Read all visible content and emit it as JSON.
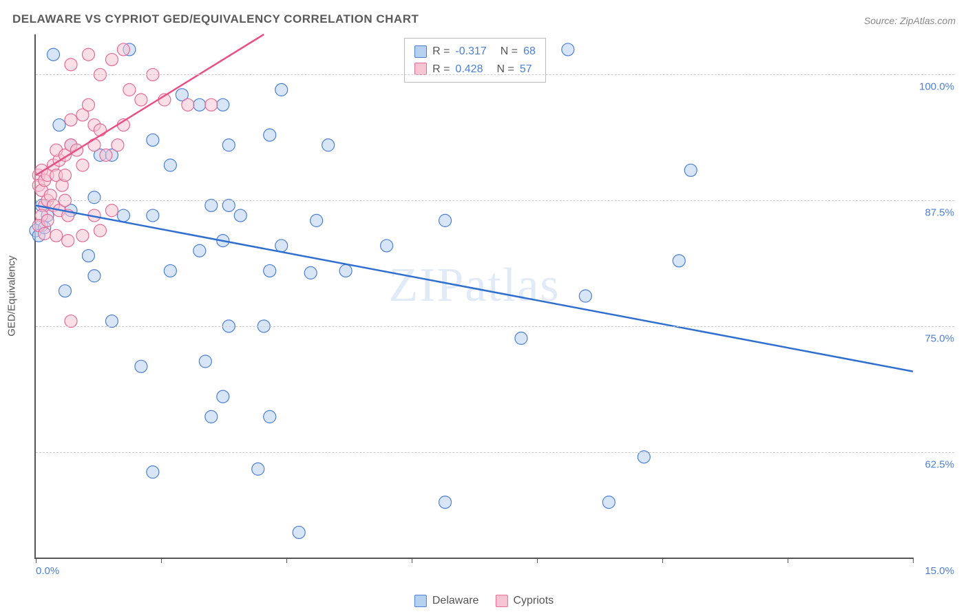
{
  "title": "DELAWARE VS CYPRIOT GED/EQUIVALENCY CORRELATION CHART",
  "source": "Source: ZipAtlas.com",
  "watermark": "ZIPatlas",
  "ylabel": "GED/Equivalency",
  "chart": {
    "type": "scatter",
    "background_color": "#ffffff",
    "grid_color": "#cccccc",
    "axis_color": "#555555",
    "xlim": [
      0.0,
      15.0
    ],
    "xlim_labels": [
      "0.0%",
      "15.0%"
    ],
    "ylim": [
      52.0,
      104.0
    ],
    "ytick_values": [
      62.5,
      75.0,
      87.5,
      100.0
    ],
    "ytick_labels": [
      "62.5%",
      "75.0%",
      "87.5%",
      "100.0%"
    ],
    "xtick_values": [
      0,
      2.14,
      4.29,
      6.43,
      8.57,
      10.71,
      12.86,
      15.0
    ],
    "marker_radius": 9,
    "marker_opacity": 0.55,
    "line_width": 2.5,
    "series": [
      {
        "name": "Delaware",
        "fill_color": "#b6d0f0",
        "stroke_color": "#4a7fd8",
        "line_color": "#2f6fd0",
        "R": "-0.317",
        "N": "68",
        "trend": {
          "x1": 0.0,
          "y1": 87.0,
          "x2": 15.0,
          "y2": 70.5
        },
        "points": [
          [
            0.1,
            87.0
          ],
          [
            0.1,
            85.0
          ],
          [
            0.0,
            84.5
          ],
          [
            0.05,
            84.0
          ],
          [
            0.2,
            86.0
          ],
          [
            0.15,
            84.8
          ],
          [
            0.3,
            102.0
          ],
          [
            1.6,
            102.5
          ],
          [
            9.1,
            102.5
          ],
          [
            0.4,
            95.0
          ],
          [
            0.6,
            93.0
          ],
          [
            1.1,
            92.0
          ],
          [
            1.3,
            92.0
          ],
          [
            2.5,
            98.0
          ],
          [
            2.8,
            97.0
          ],
          [
            3.2,
            97.0
          ],
          [
            4.2,
            98.5
          ],
          [
            2.0,
            93.5
          ],
          [
            2.3,
            91.0
          ],
          [
            3.0,
            87.0
          ],
          [
            3.3,
            87.0
          ],
          [
            3.3,
            93.0
          ],
          [
            4.0,
            94.0
          ],
          [
            5.0,
            93.0
          ],
          [
            0.9,
            82.0
          ],
          [
            0.6,
            86.5
          ],
          [
            1.0,
            87.8
          ],
          [
            1.5,
            86.0
          ],
          [
            2.0,
            86.0
          ],
          [
            2.8,
            82.5
          ],
          [
            3.2,
            83.5
          ],
          [
            3.5,
            86.0
          ],
          [
            4.2,
            83.0
          ],
          [
            4.8,
            85.5
          ],
          [
            6.0,
            83.0
          ],
          [
            7.0,
            85.5
          ],
          [
            1.0,
            80.0
          ],
          [
            0.5,
            78.5
          ],
          [
            2.3,
            80.5
          ],
          [
            4.0,
            80.5
          ],
          [
            4.7,
            80.3
          ],
          [
            5.3,
            80.5
          ],
          [
            8.3,
            73.8
          ],
          [
            9.4,
            78.0
          ],
          [
            11.0,
            81.5
          ],
          [
            11.2,
            90.5
          ],
          [
            1.8,
            71.0
          ],
          [
            1.3,
            75.5
          ],
          [
            2.9,
            71.5
          ],
          [
            3.3,
            75.0
          ],
          [
            3.9,
            75.0
          ],
          [
            3.0,
            66.0
          ],
          [
            3.2,
            68.0
          ],
          [
            4.0,
            66.0
          ],
          [
            2.0,
            60.5
          ],
          [
            3.8,
            60.8
          ],
          [
            4.5,
            54.5
          ],
          [
            7.0,
            57.5
          ],
          [
            9.8,
            57.5
          ],
          [
            10.4,
            62.0
          ]
        ]
      },
      {
        "name": "Cypriots",
        "fill_color": "#f6c4d3",
        "stroke_color": "#e86a94",
        "line_color": "#e84f84",
        "R": "0.428",
        "N": "57",
        "trend": {
          "x1": 0.0,
          "y1": 90.0,
          "x2": 3.9,
          "y2": 104.0
        },
        "points": [
          [
            0.05,
            90.0
          ],
          [
            0.05,
            89.0
          ],
          [
            0.1,
            90.5
          ],
          [
            0.1,
            88.5
          ],
          [
            0.15,
            89.5
          ],
          [
            0.2,
            90.0
          ],
          [
            0.15,
            87.0
          ],
          [
            0.2,
            87.5
          ],
          [
            0.25,
            88.0
          ],
          [
            0.1,
            86.0
          ],
          [
            0.05,
            85.0
          ],
          [
            0.2,
            85.5
          ],
          [
            0.3,
            91.0
          ],
          [
            0.35,
            90.0
          ],
          [
            0.4,
            91.5
          ],
          [
            0.45,
            89.0
          ],
          [
            0.5,
            90.0
          ],
          [
            0.3,
            87.0
          ],
          [
            0.4,
            86.5
          ],
          [
            0.5,
            87.5
          ],
          [
            0.55,
            86.0
          ],
          [
            0.35,
            92.5
          ],
          [
            0.5,
            92.0
          ],
          [
            0.6,
            93.0
          ],
          [
            0.7,
            92.5
          ],
          [
            0.8,
            91.0
          ],
          [
            0.15,
            84.2
          ],
          [
            0.35,
            84.0
          ],
          [
            0.55,
            83.5
          ],
          [
            0.8,
            84.0
          ],
          [
            0.6,
            95.5
          ],
          [
            0.8,
            96.0
          ],
          [
            0.9,
            97.0
          ],
          [
            1.0,
            95.0
          ],
          [
            1.0,
            93.0
          ],
          [
            1.1,
            94.5
          ],
          [
            1.2,
            92.0
          ],
          [
            1.4,
            93.0
          ],
          [
            1.5,
            95.0
          ],
          [
            0.6,
            101.0
          ],
          [
            0.9,
            102.0
          ],
          [
            1.1,
            100.0
          ],
          [
            1.3,
            101.5
          ],
          [
            1.5,
            102.5
          ],
          [
            1.6,
            98.5
          ],
          [
            1.8,
            97.5
          ],
          [
            2.0,
            100.0
          ],
          [
            2.2,
            97.5
          ],
          [
            2.6,
            97.0
          ],
          [
            3.0,
            97.0
          ],
          [
            1.0,
            86.0
          ],
          [
            1.1,
            84.5
          ],
          [
            1.3,
            86.5
          ],
          [
            0.6,
            75.5
          ]
        ]
      }
    ]
  },
  "legend": [
    "Delaware",
    "Cypriots"
  ]
}
